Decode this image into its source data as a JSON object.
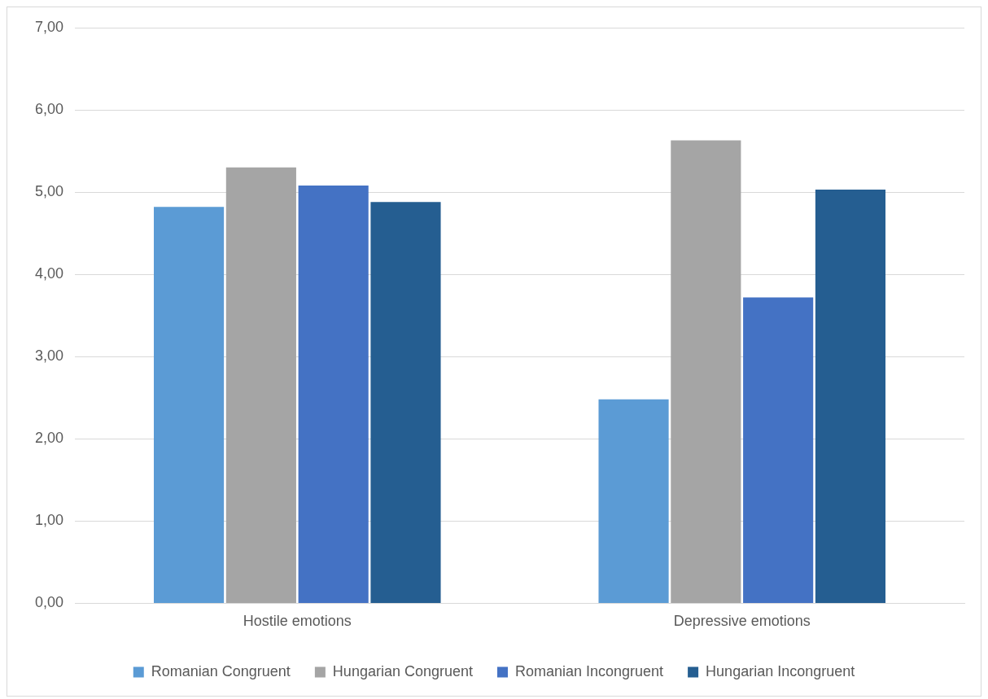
{
  "chart_data": {
    "type": "bar",
    "categories": [
      "Hostile emotions",
      "Depressive emotions"
    ],
    "series": [
      {
        "name": "Romanian Congruent",
        "color": "#5b9bd5",
        "values": [
          4.82,
          2.48
        ]
      },
      {
        "name": "Hungarian Congruent",
        "color": "#a5a5a5",
        "values": [
          5.3,
          5.63
        ]
      },
      {
        "name": "Romanian Incongruent",
        "color": "#4472c4",
        "values": [
          5.08,
          3.72
        ]
      },
      {
        "name": "Hungarian Incongruent",
        "color": "#255e91",
        "values": [
          4.88,
          5.03
        ]
      }
    ],
    "ylim": [
      0,
      7
    ],
    "yticks": [
      {
        "value": 0,
        "label": "0,00"
      },
      {
        "value": 1,
        "label": "1,00"
      },
      {
        "value": 2,
        "label": "2,00"
      },
      {
        "value": 3,
        "label": "3,00"
      },
      {
        "value": 4,
        "label": "4,00"
      },
      {
        "value": 5,
        "label": "5,00"
      },
      {
        "value": 6,
        "label": "6,00"
      },
      {
        "value": 7,
        "label": "7,00"
      }
    ],
    "grid": "y",
    "legend": "bottom"
  }
}
